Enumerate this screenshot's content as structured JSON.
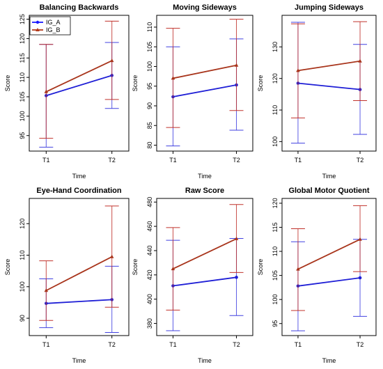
{
  "figure": {
    "ylabel": "Score",
    "xlabel": "Time"
  },
  "legend": {
    "entries": [
      {
        "name": "IG_A",
        "color": "#1a1aff"
      },
      {
        "name": "IG_B",
        "color": "#b33a1a"
      }
    ]
  },
  "colors": {
    "IG_A": "#1f1fd6",
    "IG_B": "#a8341b",
    "IG_B_err": "#c0302a",
    "IG_A_err": "#4040e0"
  },
  "chart_data": [
    {
      "type": "line",
      "title": "Balancing Backwards",
      "xlabel": "Time",
      "ylabel": "Score",
      "categories": [
        "T1",
        "T2"
      ],
      "ylim": [
        91,
        126
      ],
      "yticks": [
        95,
        100,
        105,
        110,
        115,
        120,
        125
      ],
      "series": [
        {
          "name": "IG_A",
          "values": [
            105.3,
            110.5
          ],
          "lower": [
            92.0,
            102.0
          ],
          "upper": [
            118.5,
            119.0
          ]
        },
        {
          "name": "IG_B",
          "values": [
            106.3,
            114.3
          ],
          "lower": [
            94.3,
            104.3
          ],
          "upper": [
            118.5,
            124.5
          ]
        }
      ]
    },
    {
      "type": "line",
      "title": "Moving Sideways",
      "xlabel": "Time",
      "ylabel": "Score",
      "categories": [
        "T1",
        "T2"
      ],
      "ylim": [
        78.5,
        113
      ],
      "yticks": [
        80,
        85,
        90,
        95,
        100,
        105,
        110
      ],
      "series": [
        {
          "name": "IG_A",
          "values": [
            92.3,
            95.3
          ],
          "lower": [
            79.8,
            83.8
          ],
          "upper": [
            105.0,
            107.0
          ]
        },
        {
          "name": "IG_B",
          "values": [
            97.0,
            100.3
          ],
          "lower": [
            84.5,
            88.8
          ],
          "upper": [
            109.7,
            112.0
          ]
        }
      ]
    },
    {
      "type": "line",
      "title": "Jumping Sideways",
      "xlabel": "Time",
      "ylabel": "Score",
      "categories": [
        "T1",
        "T2"
      ],
      "ylim": [
        97,
        140
      ],
      "yticks": [
        100,
        110,
        120,
        130
      ],
      "series": [
        {
          "name": "IG_A",
          "values": [
            118.5,
            116.5
          ],
          "lower": [
            99.5,
            102.3
          ],
          "upper": [
            137.8,
            130.8
          ]
        },
        {
          "name": "IG_B",
          "values": [
            122.5,
            125.5
          ],
          "lower": [
            107.5,
            113.0
          ],
          "upper": [
            137.3,
            138.0
          ]
        }
      ]
    },
    {
      "type": "line",
      "title": "Eye-Hand Coordination",
      "xlabel": "Time",
      "ylabel": "Score",
      "categories": [
        "T1",
        "T2"
      ],
      "ylim": [
        84.5,
        128
      ],
      "yticks": [
        90,
        100,
        110,
        120
      ],
      "series": [
        {
          "name": "IG_A",
          "values": [
            94.7,
            95.9
          ],
          "lower": [
            87.0,
            85.5
          ],
          "upper": [
            102.5,
            106.5
          ]
        },
        {
          "name": "IG_B",
          "values": [
            98.8,
            109.5
          ],
          "lower": [
            89.3,
            93.5
          ],
          "upper": [
            108.2,
            125.6
          ]
        }
      ]
    },
    {
      "type": "line",
      "title": "Raw Score",
      "xlabel": "Time",
      "ylabel": "Score",
      "categories": [
        "T1",
        "T2"
      ],
      "ylim": [
        370,
        483
      ],
      "yticks": [
        380,
        400,
        420,
        440,
        460,
        480
      ],
      "series": [
        {
          "name": "IG_A",
          "values": [
            411.0,
            418.0
          ],
          "lower": [
            374.0,
            386.5
          ],
          "upper": [
            448.5,
            450.0
          ]
        },
        {
          "name": "IG_B",
          "values": [
            425.0,
            449.8
          ],
          "lower": [
            391.0,
            422.0
          ],
          "upper": [
            459.0,
            478.0
          ]
        }
      ]
    },
    {
      "type": "line",
      "title": "Global Motor Quotient",
      "xlabel": "Time",
      "ylabel": "Score",
      "categories": [
        "T1",
        "T2"
      ],
      "ylim": [
        92.5,
        121
      ],
      "yticks": [
        95,
        100,
        105,
        110,
        115,
        120
      ],
      "series": [
        {
          "name": "IG_A",
          "values": [
            102.8,
            104.5
          ],
          "lower": [
            93.5,
            96.5
          ],
          "upper": [
            112.0,
            112.5
          ]
        },
        {
          "name": "IG_B",
          "values": [
            106.3,
            112.5
          ],
          "lower": [
            97.7,
            105.8
          ],
          "upper": [
            114.7,
            119.5
          ]
        }
      ]
    }
  ]
}
